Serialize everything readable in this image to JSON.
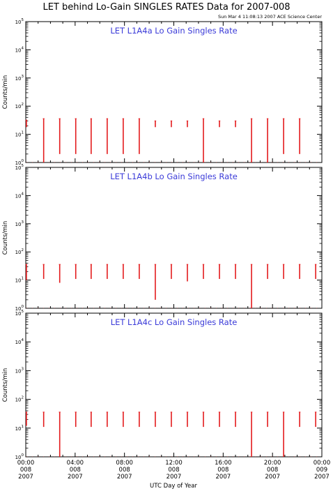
{
  "title": "LET behind Lo-Gain SINGLES RATES Data for 2007-008",
  "timestamp": "Sun Mar  4 11:08:13 2007 ACE Science Center",
  "colors": {
    "data": "#e31a1c",
    "label": "#3a3ad8",
    "axis": "#000000"
  },
  "chart_data": [
    {
      "type": "line",
      "panel_label": "LET L1A4a Lo Gain Singles Rate",
      "ylabel": "Counts/min",
      "yscale": "log",
      "ylim": [
        1,
        100000
      ],
      "xlim_hours": [
        0,
        24
      ],
      "y_tick_labels": [
        "10^0",
        "10^1",
        "10^2",
        "10^3",
        "10^4",
        "10^5"
      ],
      "spikes": [
        {
          "t": 0.05,
          "top": 32,
          "bottom": 18
        },
        {
          "t": 1.45,
          "top": 36,
          "bottom": 1
        },
        {
          "t": 2.75,
          "top": 36,
          "bottom": 2
        },
        {
          "t": 4.05,
          "top": 36,
          "bottom": 2
        },
        {
          "t": 5.3,
          "top": 36,
          "bottom": 2
        },
        {
          "t": 6.6,
          "top": 36,
          "bottom": 2
        },
        {
          "t": 7.9,
          "top": 36,
          "bottom": 2
        },
        {
          "t": 9.2,
          "top": 36,
          "bottom": 2
        },
        {
          "t": 10.5,
          "top": 30,
          "bottom": 18
        },
        {
          "t": 11.8,
          "top": 30,
          "bottom": 18
        },
        {
          "t": 13.1,
          "top": 30,
          "bottom": 18
        },
        {
          "t": 14.4,
          "top": 36,
          "bottom": 1
        },
        {
          "t": 15.7,
          "top": 30,
          "bottom": 18
        },
        {
          "t": 17.0,
          "top": 30,
          "bottom": 18
        },
        {
          "t": 18.3,
          "top": 36,
          "bottom": 1
        },
        {
          "t": 19.6,
          "top": 36,
          "bottom": 1
        },
        {
          "t": 20.9,
          "top": 36,
          "bottom": 2
        },
        {
          "t": 22.2,
          "top": 36,
          "bottom": 2
        }
      ]
    },
    {
      "type": "line",
      "panel_label": "LET L1A4b Lo Gain Singles Rate",
      "ylabel": "Counts/min",
      "yscale": "log",
      "ylim": [
        1,
        100000
      ],
      "xlim_hours": [
        0,
        24
      ],
      "y_tick_labels": [
        "10^0",
        "10^1",
        "10^2",
        "10^3",
        "10^4",
        "10^5"
      ],
      "spikes": [
        {
          "t": 0.05,
          "top": 36,
          "bottom": 10
        },
        {
          "t": 1.45,
          "top": 36,
          "bottom": 11
        },
        {
          "t": 2.75,
          "top": 36,
          "bottom": 8
        },
        {
          "t": 4.05,
          "top": 36,
          "bottom": 11
        },
        {
          "t": 5.3,
          "top": 36,
          "bottom": 11
        },
        {
          "t": 6.6,
          "top": 36,
          "bottom": 11
        },
        {
          "t": 7.9,
          "top": 36,
          "bottom": 11
        },
        {
          "t": 9.2,
          "top": 36,
          "bottom": 11
        },
        {
          "t": 10.5,
          "top": 36,
          "bottom": 2
        },
        {
          "t": 11.8,
          "top": 36,
          "bottom": 11
        },
        {
          "t": 13.1,
          "top": 36,
          "bottom": 9
        },
        {
          "t": 14.4,
          "top": 36,
          "bottom": 11
        },
        {
          "t": 15.7,
          "top": 36,
          "bottom": 11
        },
        {
          "t": 17.0,
          "top": 36,
          "bottom": 11
        },
        {
          "t": 18.3,
          "top": 36,
          "bottom": 1
        },
        {
          "t": 19.6,
          "top": 36,
          "bottom": 11
        },
        {
          "t": 20.9,
          "top": 36,
          "bottom": 11
        },
        {
          "t": 22.2,
          "top": 36,
          "bottom": 11
        },
        {
          "t": 23.5,
          "top": 36,
          "bottom": 11
        }
      ]
    },
    {
      "type": "line",
      "panel_label": "LET L1A4c Lo Gain Singles Rate",
      "ylabel": "Counts/min",
      "yscale": "log",
      "ylim": [
        1,
        100000
      ],
      "xlim_hours": [
        0,
        24
      ],
      "y_tick_labels": [
        "10^0",
        "10^1",
        "10^2",
        "10^3",
        "10^4",
        "10^5"
      ],
      "spikes": [
        {
          "t": 0.05,
          "top": 36,
          "bottom": 12
        },
        {
          "t": 1.45,
          "top": 36,
          "bottom": 11
        },
        {
          "t": 2.75,
          "top": 36,
          "bottom": 1
        },
        {
          "t": 4.05,
          "top": 36,
          "bottom": 11
        },
        {
          "t": 5.3,
          "top": 36,
          "bottom": 11
        },
        {
          "t": 6.6,
          "top": 36,
          "bottom": 11
        },
        {
          "t": 7.9,
          "top": 36,
          "bottom": 11
        },
        {
          "t": 9.2,
          "top": 36,
          "bottom": 11
        },
        {
          "t": 10.5,
          "top": 36,
          "bottom": 11
        },
        {
          "t": 11.8,
          "top": 36,
          "bottom": 11
        },
        {
          "t": 13.1,
          "top": 36,
          "bottom": 11
        },
        {
          "t": 14.4,
          "top": 36,
          "bottom": 11
        },
        {
          "t": 15.7,
          "top": 36,
          "bottom": 11
        },
        {
          "t": 17.0,
          "top": 36,
          "bottom": 11
        },
        {
          "t": 18.3,
          "top": 36,
          "bottom": 1
        },
        {
          "t": 19.6,
          "top": 36,
          "bottom": 11
        },
        {
          "t": 20.9,
          "top": 36,
          "bottom": 1
        },
        {
          "t": 22.2,
          "top": 36,
          "bottom": 11
        },
        {
          "t": 23.5,
          "top": 36,
          "bottom": 11
        }
      ]
    }
  ],
  "x_axis": {
    "title": "UTC Day of Year",
    "ticks": [
      {
        "hours": 0,
        "time": "00:00",
        "doy": "008",
        "year": "2007"
      },
      {
        "hours": 4,
        "time": "04:00",
        "doy": "008",
        "year": "2007"
      },
      {
        "hours": 8,
        "time": "08:00",
        "doy": "008",
        "year": "2007"
      },
      {
        "hours": 12,
        "time": "12:00",
        "doy": "008",
        "year": "2007"
      },
      {
        "hours": 16,
        "time": "16:00",
        "doy": "008",
        "year": "2007"
      },
      {
        "hours": 20,
        "time": "20:00",
        "doy": "008",
        "year": "2007"
      },
      {
        "hours": 24,
        "time": "00:00",
        "doy": "009",
        "year": "2007"
      }
    ]
  }
}
